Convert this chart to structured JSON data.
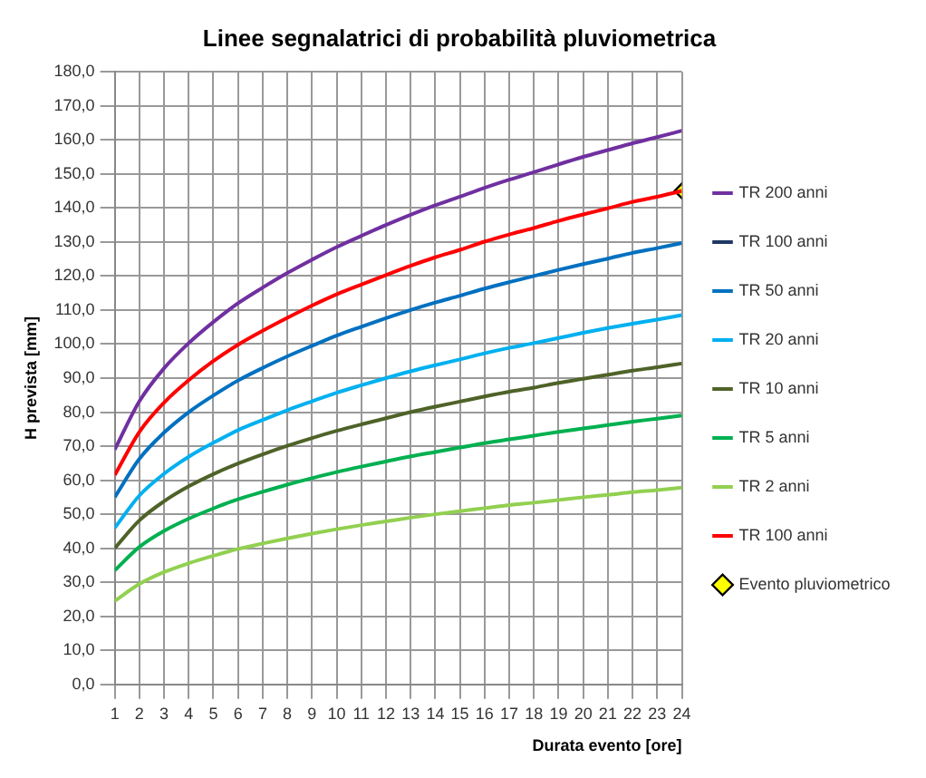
{
  "chart_data": {
    "type": "line",
    "title": "Linee segnalatrici di probabilità pluviometrica",
    "xlabel": "Durata evento [ore]",
    "ylabel": "H prevista [mm]",
    "x": [
      1,
      2,
      3,
      4,
      5,
      6,
      7,
      8,
      9,
      10,
      11,
      12,
      13,
      14,
      15,
      16,
      17,
      18,
      19,
      20,
      21,
      22,
      23,
      24
    ],
    "xlim": [
      1,
      24
    ],
    "xticks": [
      1,
      2,
      3,
      4,
      5,
      6,
      7,
      8,
      9,
      10,
      11,
      12,
      13,
      14,
      15,
      16,
      17,
      18,
      19,
      20,
      21,
      22,
      23,
      24
    ],
    "ylim": [
      0,
      180
    ],
    "yticks": [
      {
        "value": 0,
        "label": "0,0"
      },
      {
        "value": 10,
        "label": "10,0"
      },
      {
        "value": 20,
        "label": "20,0"
      },
      {
        "value": 30,
        "label": "30,0"
      },
      {
        "value": 40,
        "label": "40,0"
      },
      {
        "value": 50,
        "label": "50,0"
      },
      {
        "value": 60,
        "label": "60,0"
      },
      {
        "value": 70,
        "label": "70,0"
      },
      {
        "value": 80,
        "label": "80,0"
      },
      {
        "value": 90,
        "label": "90,0"
      },
      {
        "value": 100,
        "label": "100,0"
      },
      {
        "value": 110,
        "label": "110,0"
      },
      {
        "value": 120,
        "label": "120,0"
      },
      {
        "value": 130,
        "label": "130,0"
      },
      {
        "value": 140,
        "label": "140,0"
      },
      {
        "value": 150,
        "label": "150,0"
      },
      {
        "value": 160,
        "label": "160,0"
      },
      {
        "value": 170,
        "label": "170,0"
      },
      {
        "value": 180,
        "label": "180,0"
      }
    ],
    "grid": true,
    "legend": "right",
    "marker": "none",
    "line_style": "solid",
    "series": [
      {
        "name": "TR 200 anni",
        "color": "#7030a0",
        "values": [
          69,
          83.2,
          92.9,
          100.3,
          106.5,
          112.0,
          116.6,
          120.9,
          124.8,
          128.5,
          131.8,
          135.0,
          138.0,
          140.8,
          143.3,
          145.9,
          148.3,
          150.5,
          152.8,
          155.0,
          157.0,
          159.0,
          160.8,
          162.7
        ]
      },
      {
        "name": "TR 100 anni",
        "color": "#1f3864",
        "values": [
          null,
          null,
          null,
          null,
          null,
          null,
          null,
          null,
          null,
          null,
          null,
          null,
          null,
          null,
          null,
          null,
          null,
          null,
          null,
          null,
          null,
          null,
          null,
          null
        ]
      },
      {
        "name": "TR 50 anni",
        "color": "#0070c0",
        "values": [
          55,
          66.3,
          74.0,
          80.0,
          84.9,
          89.3,
          93.0,
          96.4,
          99.5,
          102.5,
          105.1,
          107.6,
          110.0,
          112.2,
          114.2,
          116.3,
          118.2,
          120.0,
          121.8,
          123.5,
          125.1,
          126.8,
          128.2,
          129.7
        ]
      },
      {
        "name": "TR 20 anni",
        "color": "#00b0f0",
        "values": [
          46,
          55.5,
          61.9,
          66.9,
          71.0,
          74.7,
          77.7,
          80.6,
          83.2,
          85.7,
          87.9,
          90.0,
          92.0,
          93.8,
          95.5,
          97.3,
          98.9,
          100.3,
          101.8,
          103.3,
          104.7,
          106.0,
          107.2,
          108.5
        ]
      },
      {
        "name": "TR 10 anni",
        "color": "#4f6228",
        "values": [
          40,
          48.2,
          53.8,
          58.2,
          61.8,
          64.9,
          67.6,
          70.1,
          72.4,
          74.5,
          76.4,
          78.2,
          80.0,
          81.6,
          83.1,
          84.6,
          86.0,
          87.2,
          88.6,
          89.8,
          91.0,
          92.2,
          93.2,
          94.3
        ]
      },
      {
        "name": "TR 5 anni",
        "color": "#00b050",
        "values": [
          33.5,
          40.4,
          45.1,
          48.7,
          51.7,
          54.4,
          56.6,
          58.7,
          60.6,
          62.4,
          64.0,
          65.5,
          67.0,
          68.3,
          69.6,
          70.9,
          72.0,
          73.1,
          74.2,
          75.2,
          76.2,
          77.2,
          78.1,
          79.0
        ]
      },
      {
        "name": "TR 2 anni",
        "color": "#92d050",
        "values": [
          24.5,
          29.5,
          33.0,
          35.6,
          37.8,
          39.8,
          41.4,
          42.9,
          44.3,
          45.6,
          46.8,
          47.9,
          49.0,
          50.0,
          50.9,
          51.8,
          52.7,
          53.4,
          54.2,
          55.0,
          55.7,
          56.5,
          57.1,
          57.8
        ]
      },
      {
        "name": "TR 100 anni",
        "color": "#ff0000",
        "values": [
          61.5,
          74.2,
          82.8,
          89.4,
          95.0,
          99.8,
          103.9,
          107.7,
          111.3,
          114.6,
          117.5,
          120.3,
          123.0,
          125.5,
          127.7,
          130.1,
          132.2,
          134.1,
          136.2,
          138.1,
          139.9,
          141.8,
          143.3,
          145.0
        ]
      },
      {
        "name": "Evento pluviometrico",
        "type": "scatter",
        "marker": "diamond",
        "color": "#ffff00",
        "x": [
          24
        ],
        "values": [
          145.0
        ]
      }
    ]
  }
}
